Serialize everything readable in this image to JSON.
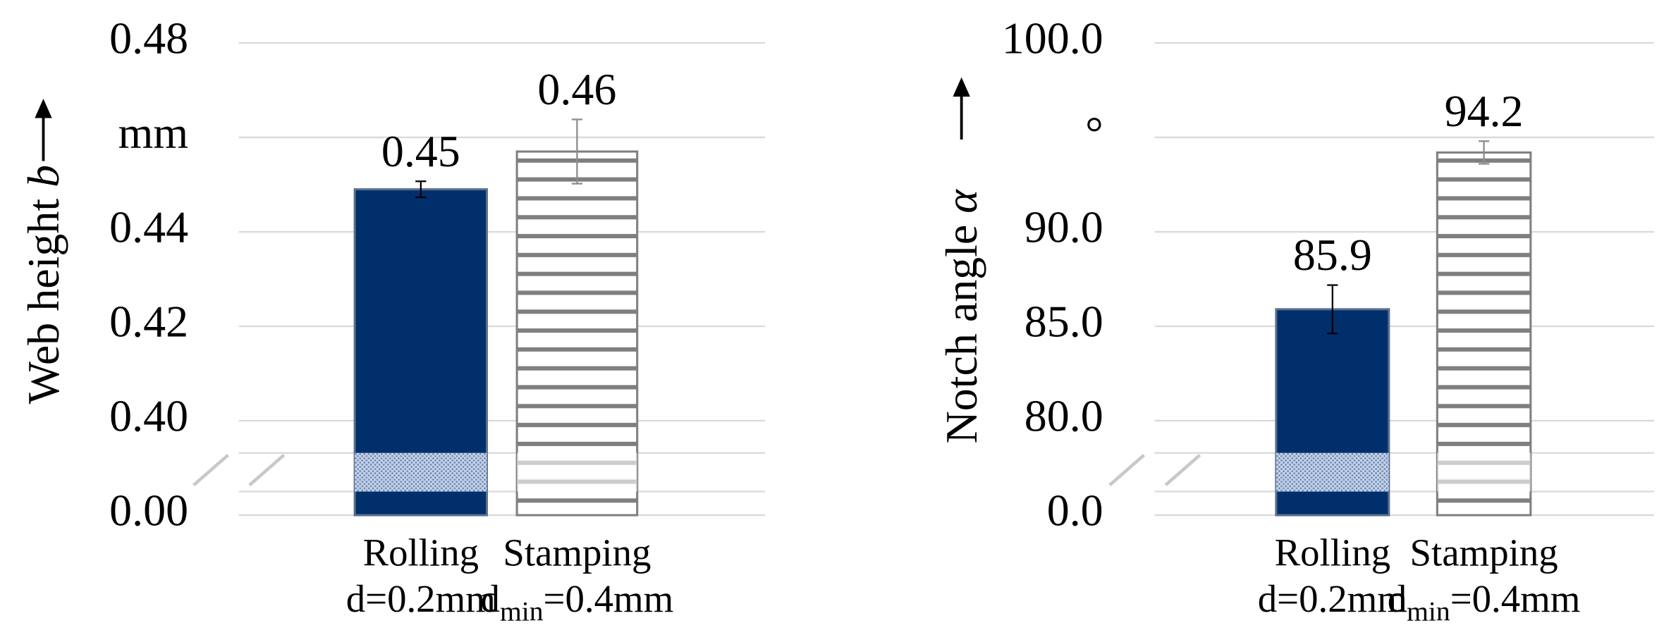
{
  "chart_data": [
    {
      "type": "bar",
      "ylabel": "Web height",
      "ylabel_symbol": "b",
      "categories": [
        "Rolling",
        "Stamping"
      ],
      "category_notes": [
        [
          "d=0.2mm"
        ],
        [
          "d",
          {
            "sub": "min"
          },
          "=0.4mm"
        ]
      ],
      "values": [
        0.449,
        0.457
      ],
      "value_labels": [
        "0.45",
        "0.46"
      ],
      "errors": [
        0.0017,
        0.0068
      ],
      "colors": [
        "#002f6c",
        "#7f7f7f"
      ],
      "patterns": [
        "solid",
        "horizontal-stripes"
      ],
      "ylim": [
        0,
        0.48
      ],
      "axis_break": true,
      "grid": true,
      "yticks": [
        {
          "value": 0,
          "label": "0.00"
        },
        {
          "value": 0.4,
          "label": "0.40"
        },
        0.42,
        0.44,
        {
          "value": 0.46,
          "label": "mm"
        },
        0.48
      ]
    },
    {
      "type": "bar",
      "ylabel": "Notch angle",
      "ylabel_symbol": "α",
      "categories": [
        "Rolling",
        "Stamping"
      ],
      "category_notes": [
        [
          "d=0.2mm"
        ],
        [
          "d",
          {
            "sub": "min"
          },
          "=0.4mm"
        ]
      ],
      "values": [
        85.9,
        94.2
      ],
      "errors": [
        1.28,
        0.6
      ],
      "colors": [
        "#002f6c",
        "#7f7f7f"
      ],
      "patterns": [
        "solid",
        "horizontal-stripes"
      ],
      "ylim": [
        0,
        100
      ],
      "axis_break": true,
      "grid": true,
      "yticks": [
        {
          "value": 0,
          "label": "0.0"
        },
        {
          "value": 80,
          "label": "80.0"
        },
        {
          "value": 85,
          "label": "85.0"
        },
        {
          "value": 90,
          "label": "90.0"
        },
        {
          "value": 95,
          "label": "°"
        },
        {
          "value": 100,
          "label": "100.0"
        }
      ]
    }
  ]
}
